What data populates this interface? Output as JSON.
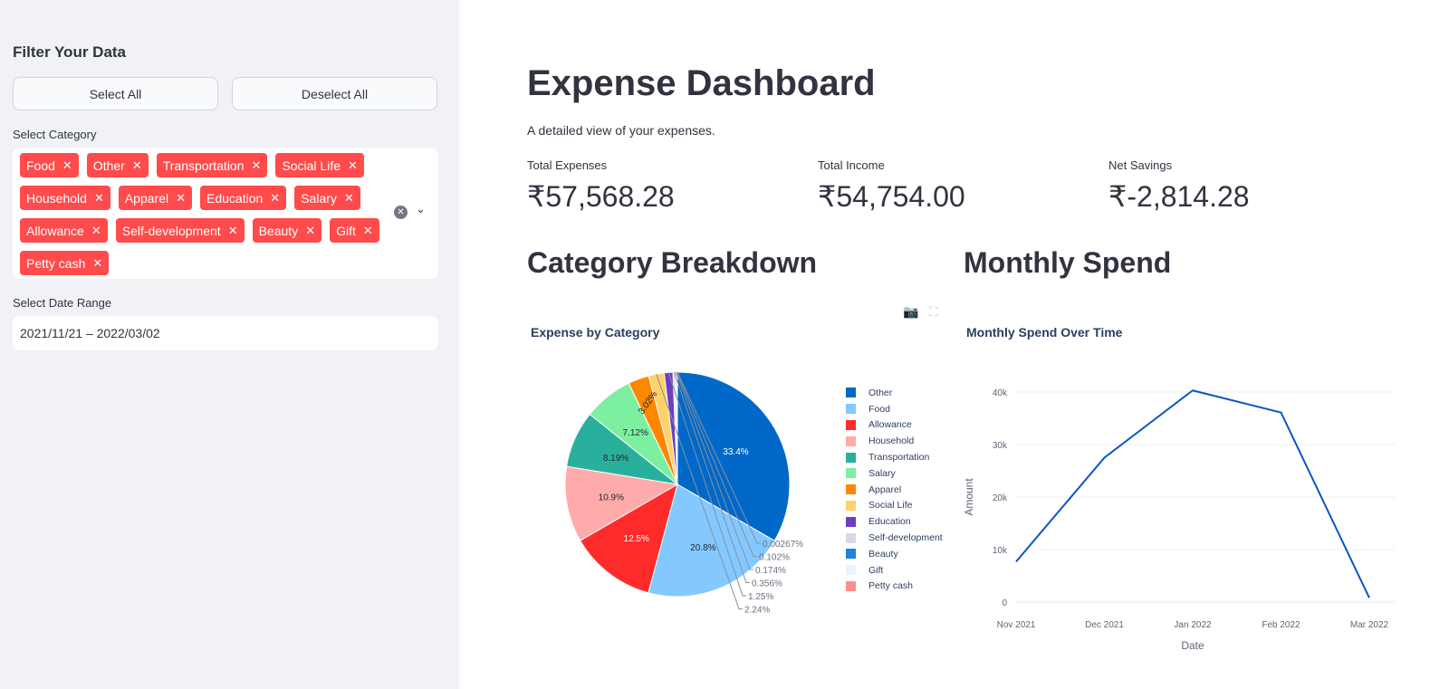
{
  "sidebar": {
    "title": "Filter Your Data",
    "select_all": "Select All",
    "deselect_all": "Deselect All",
    "category_label": "Select Category",
    "categories": [
      "Food",
      "Other",
      "Transportation",
      "Social Life",
      "Household",
      "Apparel",
      "Education",
      "Salary",
      "Allowance",
      "Self-development",
      "Beauty",
      "Gift",
      "Petty cash"
    ],
    "date_label": "Select Date Range",
    "date_value": "2021/11/21 – 2022/03/02"
  },
  "main": {
    "title": "Expense Dashboard",
    "subtitle": "A detailed view of your expenses.",
    "metrics": [
      {
        "label": "Total Expenses",
        "value": "₹57,568.28"
      },
      {
        "label": "Total Income",
        "value": "₹54,754.00"
      },
      {
        "label": "Net Savings",
        "value": "₹-2,814.28"
      }
    ],
    "section_left": "Category Breakdown",
    "section_right": "Monthly Spend"
  },
  "chart_data": [
    {
      "type": "pie",
      "title": "Expense by Category",
      "labels": [
        "Other",
        "Food",
        "Allowance",
        "Household",
        "Transportation",
        "Salary",
        "Apparel",
        "Social Life",
        "Education",
        "Self-development",
        "Beauty",
        "Gift",
        "Petty cash"
      ],
      "values": [
        33.4,
        20.8,
        12.5,
        10.9,
        8.19,
        7.12,
        3.02,
        2.24,
        1.25,
        0.356,
        0.174,
        0.102,
        0.00267
      ],
      "text_labels": [
        "33.4%",
        "20.8%",
        "12.5%",
        "10.9%",
        "8.19%",
        "7.12%",
        "3.02%",
        "2.24%",
        "1.25%",
        "0.356%",
        "0.174%",
        "0.102%",
        "0.00267%"
      ],
      "colors": [
        "#0068c9",
        "#83c9ff",
        "#ff2b2b",
        "#ffabab",
        "#29b09d",
        "#7defa1",
        "#ff8700",
        "#ffd16a",
        "#6d3fc0",
        "#d5dae5",
        "#1c83e1",
        "#e8f4ff",
        "#ff8c8c"
      ],
      "legend": "right"
    },
    {
      "type": "line",
      "title": "Monthly Spend Over Time",
      "x": [
        "Nov 2021",
        "Dec 2021",
        "Jan 2022",
        "Feb 2022",
        "Mar 2022"
      ],
      "y": [
        7700,
        27500,
        40300,
        36100,
        800
      ],
      "xlabel": "Date",
      "ylabel": "Amount",
      "yticks": [
        "0",
        "10k",
        "20k",
        "30k",
        "40k"
      ],
      "ylim": [
        0,
        40000
      ],
      "color": "#0b56c4",
      "grid": true
    }
  ]
}
